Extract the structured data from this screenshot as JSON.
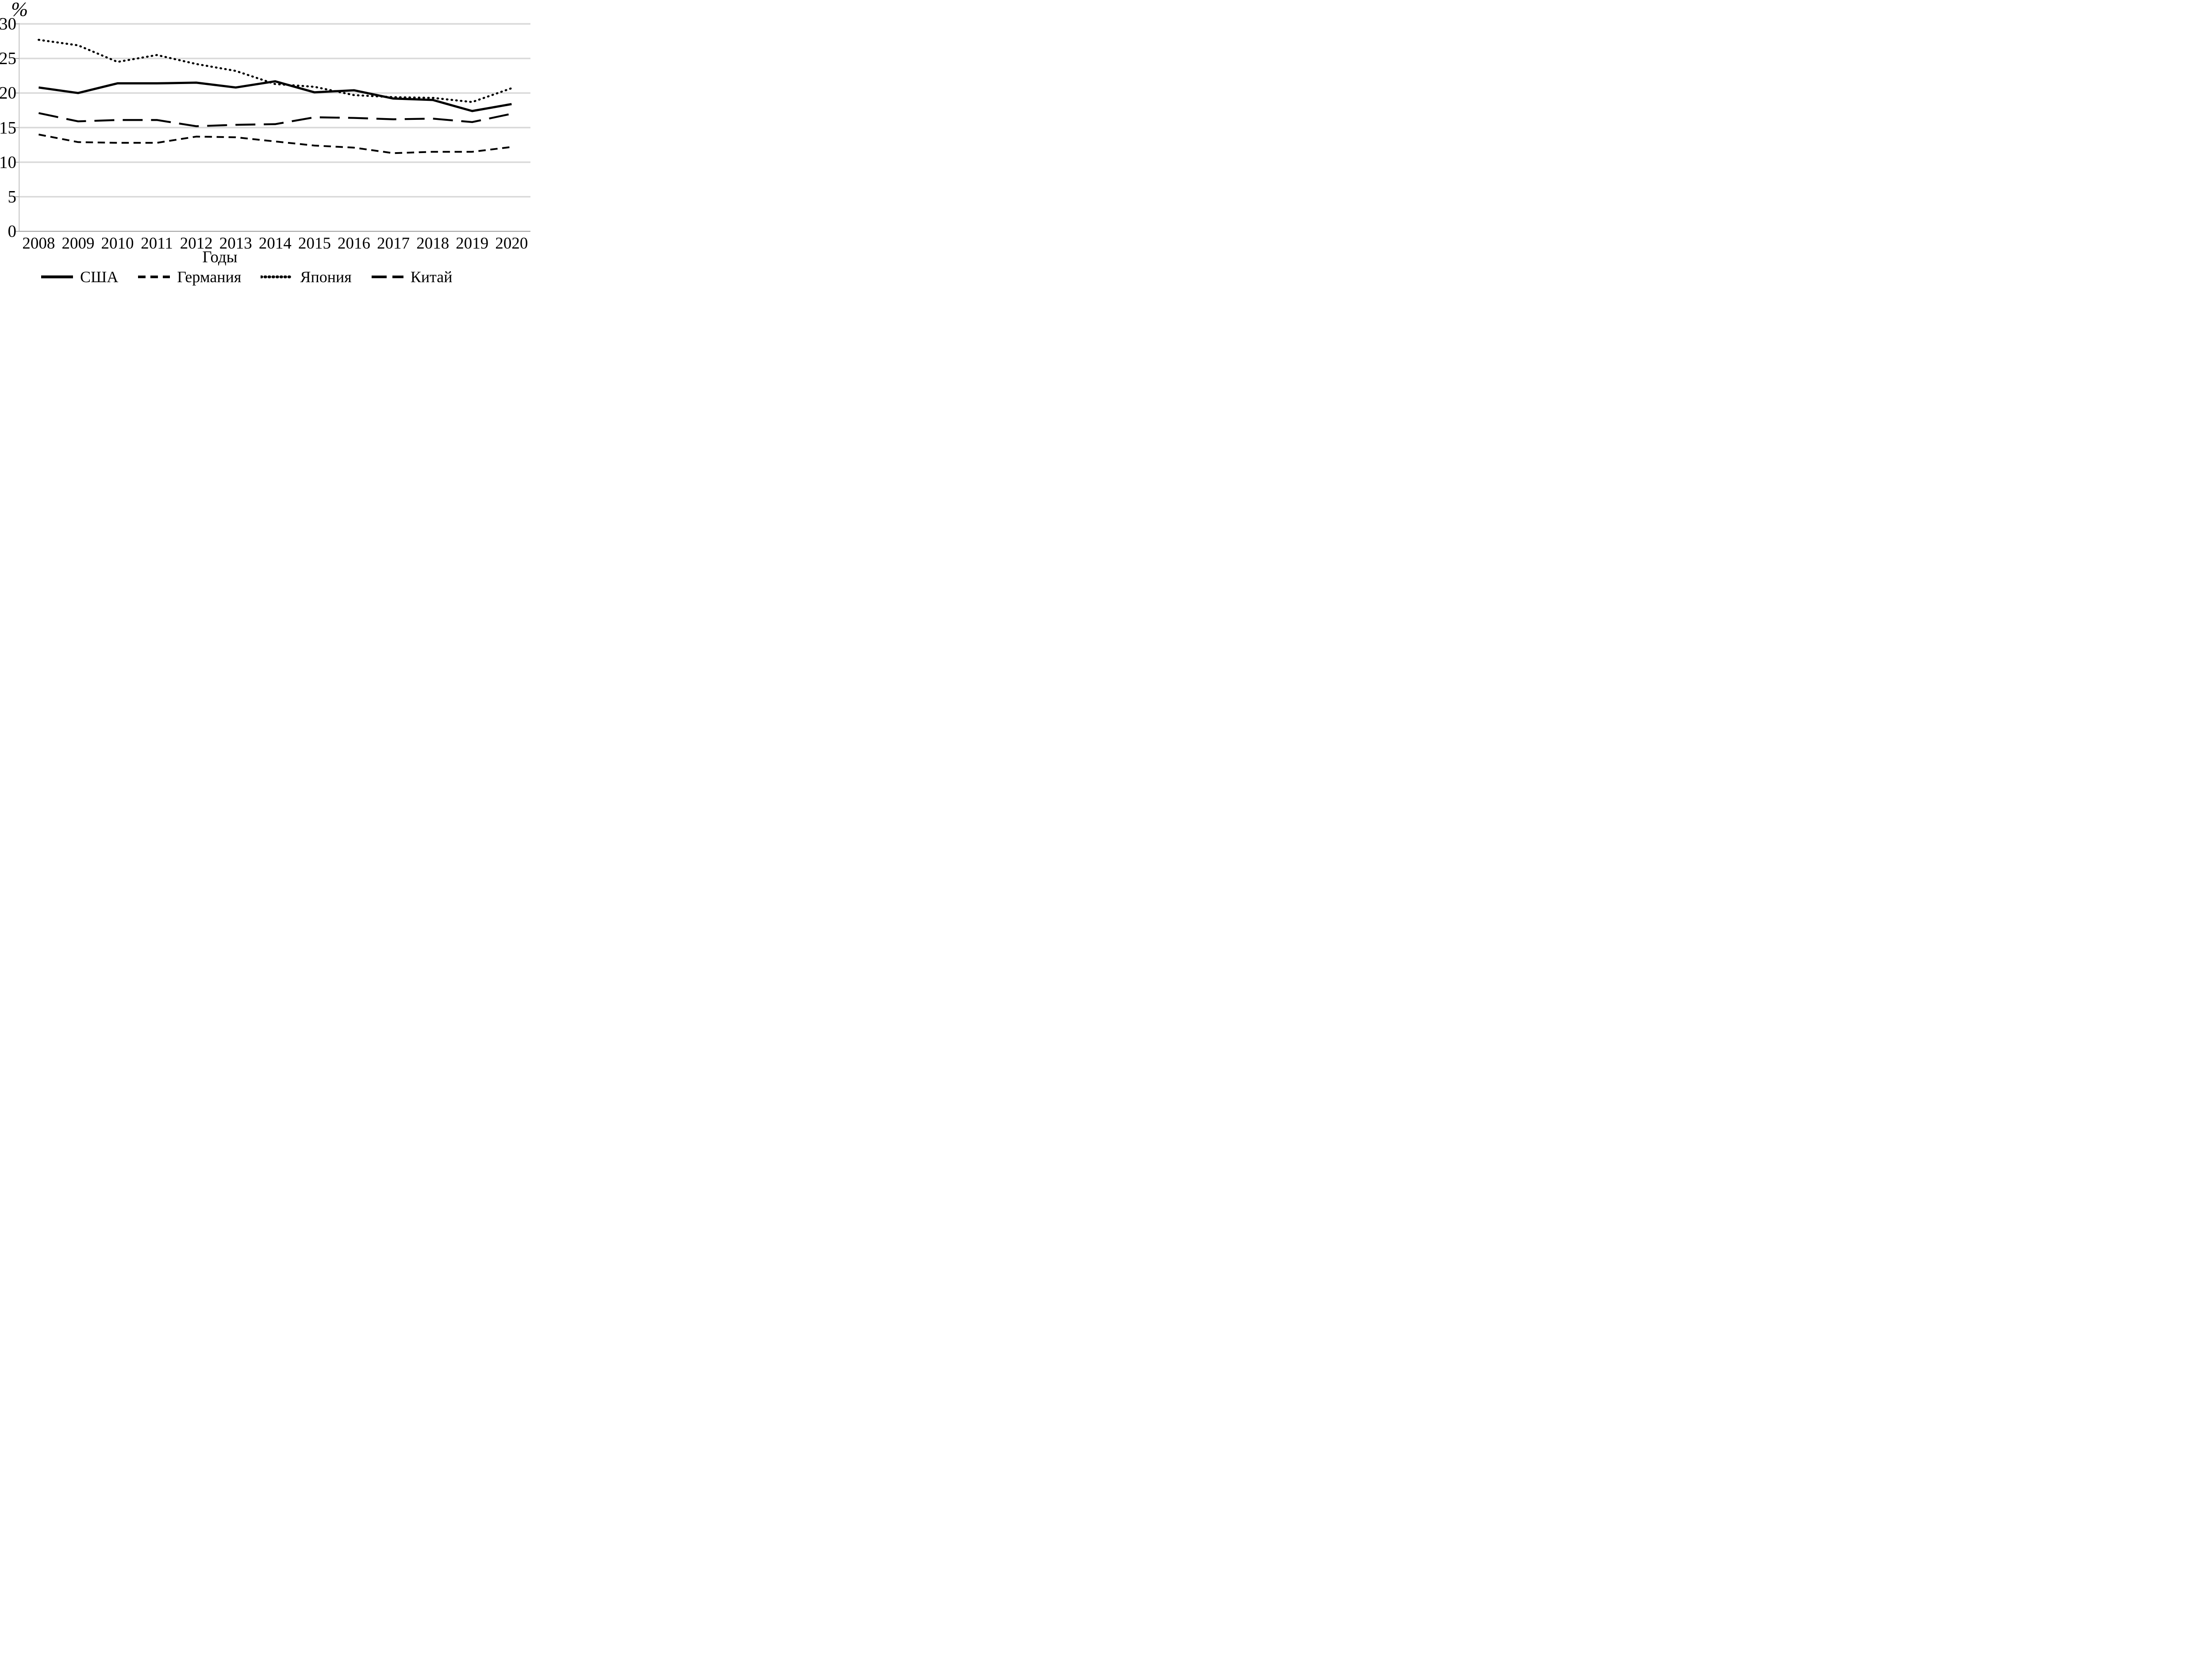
{
  "chart_data": {
    "type": "line",
    "title": "",
    "ylabel": "%",
    "xlabel": "Годы",
    "ylim": [
      0,
      30
    ],
    "yticks": [
      0,
      5,
      10,
      15,
      20,
      25,
      30
    ],
    "grid": "horizontal",
    "legend_position": "bottom",
    "categories": [
      "2008",
      "2009",
      "2010",
      "2011",
      "2012",
      "2013",
      "2014",
      "2015",
      "2016",
      "2017",
      "2018",
      "2019",
      "2020"
    ],
    "series": [
      {
        "name": "США",
        "style": "solid",
        "values": [
          20.8,
          20.0,
          21.4,
          21.4,
          21.5,
          20.8,
          21.7,
          20.1,
          20.4,
          19.2,
          19.0,
          17.4,
          18.4
        ]
      },
      {
        "name": "Германия",
        "style": "short-dash",
        "values": [
          14.0,
          12.9,
          12.8,
          12.8,
          13.7,
          13.6,
          13.0,
          12.4,
          12.1,
          11.3,
          11.5,
          11.5,
          12.2
        ]
      },
      {
        "name": "Япония",
        "style": "dotted",
        "values": [
          27.7,
          26.9,
          24.5,
          25.5,
          24.2,
          23.2,
          21.3,
          20.9,
          19.7,
          19.4,
          19.3,
          18.7,
          20.7
        ]
      },
      {
        "name": "Китай",
        "style": "long-dash",
        "values": [
          17.1,
          15.9,
          16.1,
          16.1,
          15.2,
          15.4,
          15.5,
          16.5,
          16.4,
          16.2,
          16.3,
          15.8,
          17.0
        ]
      }
    ]
  },
  "colors": {
    "line": "#000000",
    "gridline": "#d9d9d9",
    "zero_axis": "#a6a6a6",
    "axis_line": "#b3b3b3",
    "tick": "#999999",
    "text": "#000000",
    "background": "#ffffff"
  }
}
